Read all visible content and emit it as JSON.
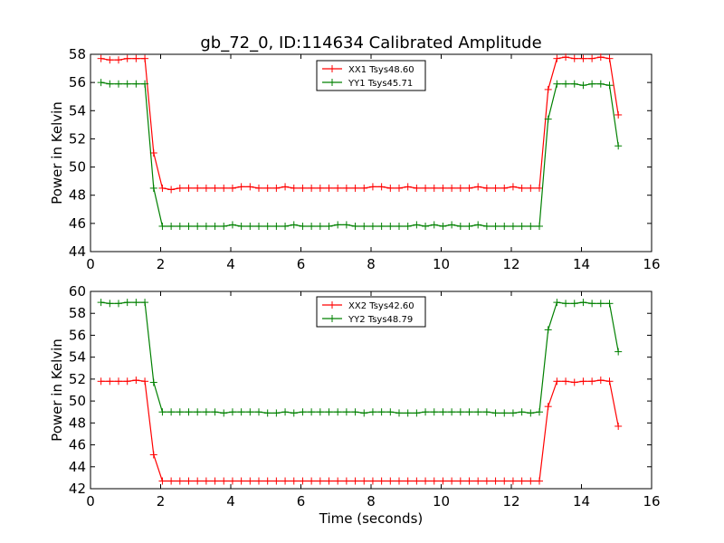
{
  "title": "gb_72_0, ID:114634 Calibrated Amplitude",
  "chart_data": [
    {
      "type": "line",
      "title": "gb_72_0, ID:114634 Calibrated Amplitude",
      "xlabel": "",
      "ylabel": "Power in Kelvin",
      "xlim": [
        0,
        16
      ],
      "ylim": [
        44,
        58
      ],
      "xticks": [
        "0",
        "2",
        "4",
        "6",
        "8",
        "10",
        "12",
        "14",
        "16"
      ],
      "yticks": [
        "44",
        "46",
        "48",
        "50",
        "52",
        "54",
        "56",
        "58"
      ],
      "legend_position": "top-center",
      "marker": "+",
      "x": [
        0.3,
        0.55,
        0.8,
        1.05,
        1.3,
        1.55,
        1.8,
        2.05,
        2.3,
        2.55,
        2.8,
        3.05,
        3.3,
        3.55,
        3.8,
        4.05,
        4.3,
        4.55,
        4.8,
        5.05,
        5.3,
        5.55,
        5.8,
        6.05,
        6.3,
        6.55,
        6.8,
        7.05,
        7.3,
        7.55,
        7.8,
        8.05,
        8.3,
        8.55,
        8.8,
        9.05,
        9.3,
        9.55,
        9.8,
        10.05,
        10.3,
        10.55,
        10.8,
        11.05,
        11.3,
        11.55,
        11.8,
        12.05,
        12.3,
        12.55,
        12.8,
        13.05,
        13.3,
        13.55,
        13.8,
        14.05,
        14.3,
        14.55,
        14.8,
        15.05
      ],
      "series": [
        {
          "name": "XX1 Tsys48.60",
          "color": "#ff0000",
          "values": [
            57.7,
            57.6,
            57.6,
            57.7,
            57.7,
            57.7,
            51.0,
            48.5,
            48.4,
            48.5,
            48.5,
            48.5,
            48.5,
            48.5,
            48.5,
            48.5,
            48.6,
            48.6,
            48.5,
            48.5,
            48.5,
            48.6,
            48.5,
            48.5,
            48.5,
            48.5,
            48.5,
            48.5,
            48.5,
            48.5,
            48.5,
            48.6,
            48.6,
            48.5,
            48.5,
            48.6,
            48.5,
            48.5,
            48.5,
            48.5,
            48.5,
            48.5,
            48.5,
            48.6,
            48.5,
            48.5,
            48.5,
            48.6,
            48.5,
            48.5,
            48.5,
            55.5,
            57.7,
            57.8,
            57.7,
            57.7,
            57.7,
            57.8,
            57.7,
            53.7
          ]
        },
        {
          "name": "YY1 Tsys45.71",
          "color": "#008000",
          "values": [
            56.0,
            55.9,
            55.9,
            55.9,
            55.9,
            55.9,
            48.5,
            45.8,
            45.8,
            45.8,
            45.8,
            45.8,
            45.8,
            45.8,
            45.8,
            45.9,
            45.8,
            45.8,
            45.8,
            45.8,
            45.8,
            45.8,
            45.9,
            45.8,
            45.8,
            45.8,
            45.8,
            45.9,
            45.9,
            45.8,
            45.8,
            45.8,
            45.8,
            45.8,
            45.8,
            45.8,
            45.9,
            45.8,
            45.9,
            45.8,
            45.9,
            45.8,
            45.8,
            45.9,
            45.8,
            45.8,
            45.8,
            45.8,
            45.8,
            45.8,
            45.8,
            53.4,
            55.9,
            55.9,
            55.9,
            55.8,
            55.9,
            55.9,
            55.8,
            51.5
          ]
        }
      ]
    },
    {
      "type": "line",
      "title": "",
      "xlabel": "Time (seconds)",
      "ylabel": "Power in Kelvin",
      "xlim": [
        0,
        16
      ],
      "ylim": [
        42,
        60
      ],
      "xticks": [
        "0",
        "2",
        "4",
        "6",
        "8",
        "10",
        "12",
        "14",
        "16"
      ],
      "yticks": [
        "42",
        "44",
        "46",
        "48",
        "50",
        "52",
        "54",
        "56",
        "58",
        "60"
      ],
      "legend_position": "top-center",
      "marker": "+",
      "x": [
        0.3,
        0.55,
        0.8,
        1.05,
        1.3,
        1.55,
        1.8,
        2.05,
        2.3,
        2.55,
        2.8,
        3.05,
        3.3,
        3.55,
        3.8,
        4.05,
        4.3,
        4.55,
        4.8,
        5.05,
        5.3,
        5.55,
        5.8,
        6.05,
        6.3,
        6.55,
        6.8,
        7.05,
        7.3,
        7.55,
        7.8,
        8.05,
        8.3,
        8.55,
        8.8,
        9.05,
        9.3,
        9.55,
        9.8,
        10.05,
        10.3,
        10.55,
        10.8,
        11.05,
        11.3,
        11.55,
        11.8,
        12.05,
        12.3,
        12.55,
        12.8,
        13.05,
        13.3,
        13.55,
        13.8,
        14.05,
        14.3,
        14.55,
        14.8,
        15.05
      ],
      "series": [
        {
          "name": "XX2 Tsys42.60",
          "color": "#ff0000",
          "values": [
            51.8,
            51.8,
            51.8,
            51.8,
            51.9,
            51.8,
            45.1,
            42.7,
            42.7,
            42.7,
            42.7,
            42.7,
            42.7,
            42.7,
            42.7,
            42.7,
            42.7,
            42.7,
            42.7,
            42.7,
            42.7,
            42.7,
            42.7,
            42.7,
            42.7,
            42.7,
            42.7,
            42.7,
            42.7,
            42.7,
            42.7,
            42.7,
            42.7,
            42.7,
            42.7,
            42.7,
            42.7,
            42.7,
            42.7,
            42.7,
            42.7,
            42.7,
            42.7,
            42.7,
            42.7,
            42.7,
            42.7,
            42.7,
            42.7,
            42.7,
            42.7,
            49.5,
            51.8,
            51.8,
            51.7,
            51.8,
            51.8,
            51.9,
            51.8,
            47.7
          ]
        },
        {
          "name": "YY2 Tsys48.79",
          "color": "#008000",
          "values": [
            59.0,
            58.9,
            58.9,
            59.0,
            59.0,
            59.0,
            51.7,
            49.0,
            49.0,
            49.0,
            49.0,
            49.0,
            49.0,
            49.0,
            48.9,
            49.0,
            49.0,
            49.0,
            49.0,
            48.9,
            48.9,
            49.0,
            48.9,
            49.0,
            49.0,
            49.0,
            49.0,
            49.0,
            49.0,
            49.0,
            48.9,
            49.0,
            49.0,
            49.0,
            48.9,
            48.9,
            48.9,
            49.0,
            49.0,
            49.0,
            49.0,
            49.0,
            49.0,
            49.0,
            49.0,
            48.9,
            48.9,
            48.9,
            49.0,
            48.9,
            49.0,
            56.5,
            59.0,
            58.9,
            58.9,
            59.0,
            58.9,
            58.9,
            58.9,
            54.5
          ]
        }
      ]
    }
  ]
}
